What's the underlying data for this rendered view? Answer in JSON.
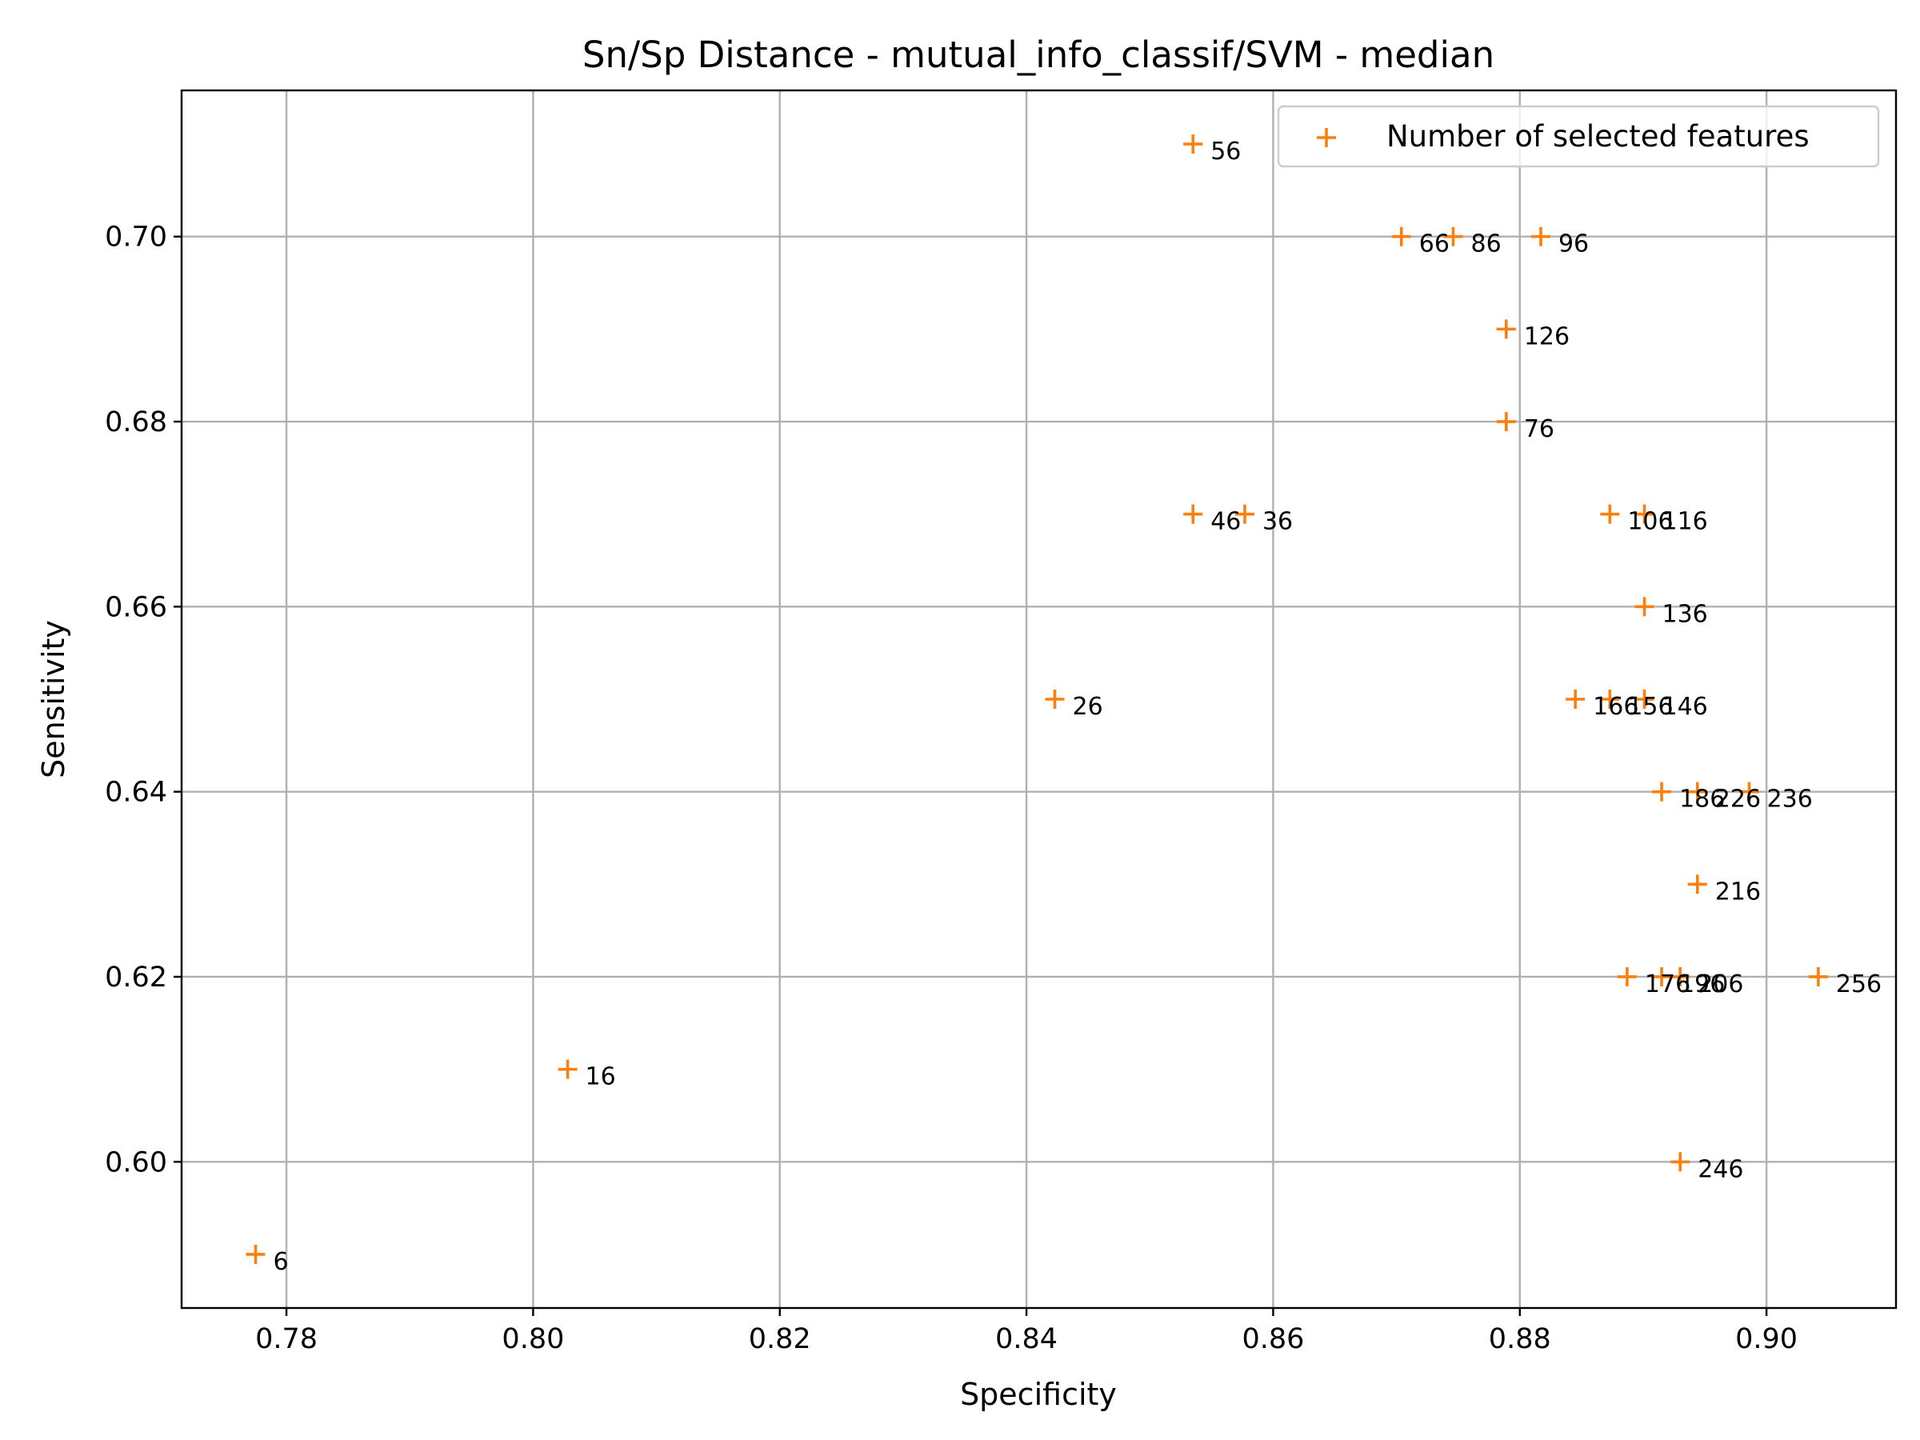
{
  "chart_data": {
    "type": "scatter",
    "title": "Sn/Sp Distance - mutual_info_classif/SVM - median",
    "xlabel": "Specificity",
    "ylabel": "Sensitivity",
    "xlim": [
      0.7715,
      0.9105
    ],
    "ylim": [
      0.5842,
      0.7158
    ],
    "x_ticks": [
      0.78,
      0.8,
      0.82,
      0.84,
      0.86,
      0.88,
      0.9
    ],
    "x_tick_labels": [
      "0.78",
      "0.80",
      "0.82",
      "0.84",
      "0.86",
      "0.88",
      "0.90"
    ],
    "y_ticks": [
      0.6,
      0.62,
      0.64,
      0.66,
      0.68,
      0.7
    ],
    "y_tick_labels": [
      "0.60",
      "0.62",
      "0.64",
      "0.66",
      "0.68",
      "0.70"
    ],
    "grid": true,
    "legend_position": "top-right",
    "marker": "plus",
    "color": "#ff7f0e",
    "series": [
      {
        "name": "Number of selected features",
        "points": [
          {
            "x": 0.7775,
            "y": 0.59,
            "label": "6"
          },
          {
            "x": 0.8028,
            "y": 0.61,
            "label": "16"
          },
          {
            "x": 0.8423,
            "y": 0.65,
            "label": "26"
          },
          {
            "x": 0.8577,
            "y": 0.67,
            "label": "36"
          },
          {
            "x": 0.8535,
            "y": 0.67,
            "label": "46"
          },
          {
            "x": 0.8535,
            "y": 0.71,
            "label": "56"
          },
          {
            "x": 0.8704,
            "y": 0.7,
            "label": "66"
          },
          {
            "x": 0.8789,
            "y": 0.68,
            "label": "76"
          },
          {
            "x": 0.8746,
            "y": 0.7,
            "label": "86"
          },
          {
            "x": 0.8817,
            "y": 0.7,
            "label": "96"
          },
          {
            "x": 0.8873,
            "y": 0.67,
            "label": "106"
          },
          {
            "x": 0.8901,
            "y": 0.67,
            "label": "116"
          },
          {
            "x": 0.8789,
            "y": 0.69,
            "label": "126"
          },
          {
            "x": 0.8901,
            "y": 0.66,
            "label": "136"
          },
          {
            "x": 0.8901,
            "y": 0.65,
            "label": "146"
          },
          {
            "x": 0.8873,
            "y": 0.65,
            "label": "156"
          },
          {
            "x": 0.8845,
            "y": 0.65,
            "label": "166"
          },
          {
            "x": 0.8887,
            "y": 0.62,
            "label": "176"
          },
          {
            "x": 0.8915,
            "y": 0.64,
            "label": "186"
          },
          {
            "x": 0.8915,
            "y": 0.62,
            "label": "196"
          },
          {
            "x": 0.893,
            "y": 0.62,
            "label": "206"
          },
          {
            "x": 0.8944,
            "y": 0.63,
            "label": "216"
          },
          {
            "x": 0.8944,
            "y": 0.64,
            "label": "226"
          },
          {
            "x": 0.8986,
            "y": 0.64,
            "label": "236"
          },
          {
            "x": 0.893,
            "y": 0.6,
            "label": "246"
          },
          {
            "x": 0.9042,
            "y": 0.62,
            "label": "256"
          }
        ]
      }
    ]
  }
}
